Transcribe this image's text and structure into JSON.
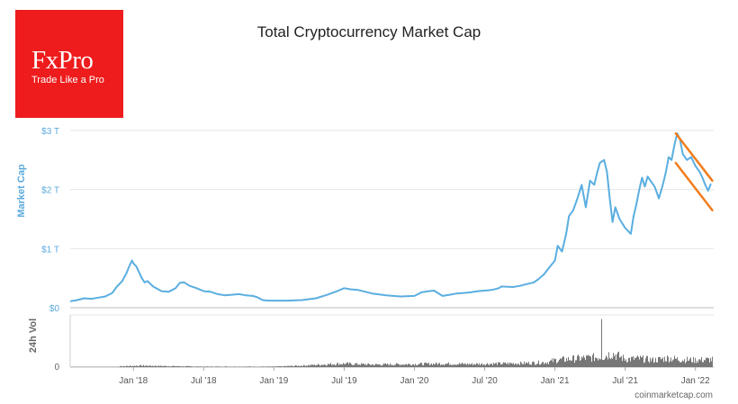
{
  "logo": {
    "name": "FxPro",
    "tagline": "Trade Like a Pro"
  },
  "source": "coinmarketcap.com",
  "colors": {
    "line": "#5aaee0",
    "trend": "#f07d1e",
    "volume": "#777777",
    "brand": "#ee1c1c"
  },
  "chart_data": {
    "type": "line",
    "title": "Total Cryptocurrency Market Cap",
    "ylabel": "Market Cap",
    "volume_label": "24h Vol",
    "y_ticks": [
      "$0",
      "$1 T",
      "$2 T",
      "$3 T"
    ],
    "y_tick_values": [
      0,
      1,
      2,
      3
    ],
    "volume_ticks": [
      "0"
    ],
    "ylim": [
      0,
      3
    ],
    "x_ticks": [
      "Jan '18",
      "Jul '18",
      "Jan '19",
      "Jul '19",
      "Jan '20",
      "Jul '20",
      "Jan '21",
      "Jul '21",
      "Jan '22"
    ],
    "x_tick_values": [
      2018.0,
      2018.5,
      2019.0,
      2019.5,
      2020.0,
      2020.5,
      2021.0,
      2021.5,
      2022.0
    ],
    "xlim": [
      2017.55,
      2022.13
    ],
    "series": [
      {
        "name": "Market Cap (T USD)",
        "x": [
          2017.55,
          2017.6,
          2017.65,
          2017.7,
          2017.75,
          2017.8,
          2017.85,
          2017.88,
          2017.92,
          2017.95,
          2017.97,
          2017.99,
          2018.0,
          2018.02,
          2018.04,
          2018.06,
          2018.08,
          2018.1,
          2018.14,
          2018.17,
          2018.2,
          2018.25,
          2018.3,
          2018.33,
          2018.36,
          2018.4,
          2018.45,
          2018.5,
          2018.55,
          2018.6,
          2018.65,
          2018.7,
          2018.75,
          2018.8,
          2018.85,
          2018.88,
          2018.92,
          2018.96,
          2019.0,
          2019.1,
          2019.2,
          2019.3,
          2019.38,
          2019.45,
          2019.5,
          2019.55,
          2019.6,
          2019.7,
          2019.8,
          2019.9,
          2020.0,
          2020.05,
          2020.1,
          2020.14,
          2020.2,
          2020.25,
          2020.3,
          2020.35,
          2020.4,
          2020.45,
          2020.5,
          2020.55,
          2020.6,
          2020.62,
          2020.7,
          2020.75,
          2020.8,
          2020.85,
          2020.88,
          2020.92,
          2020.96,
          2021.0,
          2021.02,
          2021.05,
          2021.08,
          2021.1,
          2021.13,
          2021.16,
          2021.19,
          2021.22,
          2021.25,
          2021.28,
          2021.3,
          2021.32,
          2021.35,
          2021.37,
          2021.39,
          2021.41,
          2021.43,
          2021.46,
          2021.5,
          2021.54,
          2021.56,
          2021.58,
          2021.6,
          2021.62,
          2021.64,
          2021.66,
          2021.68,
          2021.71,
          2021.74,
          2021.77,
          2021.79,
          2021.81,
          2021.83,
          2021.85,
          2021.87,
          2021.89,
          2021.91,
          2021.94,
          2021.97,
          2022.0,
          2022.03,
          2022.05,
          2022.07,
          2022.09,
          2022.11
        ],
        "values": [
          0.11,
          0.13,
          0.16,
          0.15,
          0.17,
          0.19,
          0.25,
          0.35,
          0.45,
          0.58,
          0.7,
          0.8,
          0.75,
          0.7,
          0.6,
          0.5,
          0.43,
          0.45,
          0.36,
          0.32,
          0.28,
          0.27,
          0.33,
          0.42,
          0.43,
          0.37,
          0.33,
          0.28,
          0.27,
          0.23,
          0.21,
          0.22,
          0.23,
          0.21,
          0.2,
          0.18,
          0.13,
          0.12,
          0.12,
          0.12,
          0.13,
          0.16,
          0.22,
          0.28,
          0.33,
          0.31,
          0.3,
          0.24,
          0.21,
          0.19,
          0.2,
          0.26,
          0.28,
          0.29,
          0.2,
          0.22,
          0.24,
          0.25,
          0.26,
          0.28,
          0.29,
          0.3,
          0.33,
          0.36,
          0.35,
          0.37,
          0.4,
          0.43,
          0.48,
          0.56,
          0.68,
          0.8,
          1.05,
          0.95,
          1.25,
          1.55,
          1.65,
          1.85,
          2.08,
          1.7,
          2.15,
          2.08,
          2.28,
          2.45,
          2.5,
          2.3,
          1.85,
          1.45,
          1.7,
          1.5,
          1.35,
          1.25,
          1.55,
          1.75,
          2.0,
          2.2,
          2.05,
          2.22,
          2.15,
          2.05,
          1.85,
          2.1,
          2.3,
          2.55,
          2.5,
          2.75,
          2.95,
          2.85,
          2.6,
          2.5,
          2.55,
          2.4,
          2.3,
          2.2,
          2.08,
          1.98,
          2.1
        ],
        "color": "#5aaee0"
      }
    ],
    "trend_lines": [
      {
        "x": [
          2021.86,
          2022.12
        ],
        "values": [
          2.95,
          2.15
        ],
        "color": "#f07d1e"
      },
      {
        "x": [
          2021.86,
          2022.12
        ],
        "values": [
          2.45,
          1.65
        ],
        "color": "#f07d1e"
      }
    ],
    "volume": {
      "x": [
        2017.95,
        2018.05,
        2018.25,
        2018.5,
        2019.0,
        2019.2,
        2019.4,
        2019.5,
        2019.7,
        2020.0,
        2020.2,
        2020.4,
        2020.6,
        2020.8,
        2020.95,
        2021.0,
        2021.1,
        2021.2,
        2021.3,
        2021.33,
        2021.35,
        2021.4,
        2021.5,
        2021.6,
        2021.7,
        2021.8,
        2021.9,
        2022.0,
        2022.1
      ],
      "values": [
        0.02,
        0.03,
        0.02,
        0.01,
        0.01,
        0.03,
        0.06,
        0.07,
        0.05,
        0.06,
        0.07,
        0.06,
        0.07,
        0.08,
        0.1,
        0.14,
        0.16,
        0.18,
        0.2,
        0.92,
        0.22,
        0.28,
        0.16,
        0.17,
        0.14,
        0.18,
        0.15,
        0.14,
        0.15
      ],
      "color": "#777777"
    }
  }
}
